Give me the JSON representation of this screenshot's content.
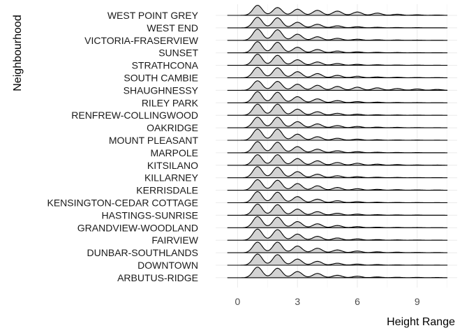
{
  "chart_data": {
    "type": "ridgeline",
    "xlabel": "Height Range",
    "ylabel": "Neighbourhood",
    "xlim": [
      -1.1,
      11.0
    ],
    "x_ticks": [
      0,
      3,
      6,
      9
    ],
    "grid": true,
    "fill_color": "#d3d3d3",
    "line_color": "#000000",
    "categories": [
      "ARBUTUS-RIDGE",
      "DOWNTOWN",
      "DUNBAR-SOUTHLANDS",
      "FAIRVIEW",
      "GRANDVIEW-WOODLAND",
      "HASTINGS-SUNRISE",
      "KENSINGTON-CEDAR COTTAGE",
      "KERRISDALE",
      "KILLARNEY",
      "KITSILANO",
      "MARPOLE",
      "MOUNT PLEASANT",
      "OAKRIDGE",
      "RENFREW-COLLINGWOOD",
      "RILEY PARK",
      "SHAUGHNESSY",
      "SOUTH CAMBIE",
      "STRATHCONA",
      "SUNSET",
      "VICTORIA-FRASERVIEW",
      "WEST END",
      "WEST POINT GREY"
    ],
    "density_range": [
      -0.5,
      10.5
    ],
    "density_peaks_x": [
      1,
      2,
      3,
      4,
      5,
      6,
      7,
      8,
      9,
      10
    ],
    "series": [
      {
        "name": "ARBUTUS-RIDGE",
        "peaks": [
          0.95,
          0.85,
          0.55,
          0.38,
          0.22,
          0.13,
          0.07,
          0.04,
          0.03,
          0.02
        ]
      },
      {
        "name": "DOWNTOWN",
        "peaks": [
          1.0,
          0.95,
          0.55,
          0.35,
          0.18,
          0.1,
          0.06,
          0.03,
          0.02,
          0.01
        ]
      },
      {
        "name": "DUNBAR-SOUTHLANDS",
        "peaks": [
          0.95,
          0.95,
          0.6,
          0.4,
          0.25,
          0.15,
          0.08,
          0.05,
          0.03,
          0.02
        ]
      },
      {
        "name": "FAIRVIEW",
        "peaks": [
          1.0,
          0.95,
          0.55,
          0.35,
          0.2,
          0.12,
          0.06,
          0.03,
          0.02,
          0.01
        ]
      },
      {
        "name": "GRANDVIEW-WOODLAND",
        "peaks": [
          1.0,
          0.95,
          0.55,
          0.35,
          0.2,
          0.1,
          0.05,
          0.03,
          0.02,
          0.01
        ]
      },
      {
        "name": "HASTINGS-SUNRISE",
        "peaks": [
          1.0,
          0.95,
          0.55,
          0.32,
          0.18,
          0.1,
          0.05,
          0.03,
          0.02,
          0.01
        ]
      },
      {
        "name": "KENSINGTON-CEDAR COTTAGE",
        "peaks": [
          1.0,
          0.95,
          0.55,
          0.32,
          0.18,
          0.1,
          0.05,
          0.03,
          0.02,
          0.01
        ]
      },
      {
        "name": "KERRISDALE",
        "peaks": [
          0.95,
          0.9,
          0.6,
          0.4,
          0.25,
          0.14,
          0.08,
          0.05,
          0.03,
          0.02
        ]
      },
      {
        "name": "KILLARNEY",
        "peaks": [
          1.0,
          0.95,
          0.55,
          0.32,
          0.18,
          0.1,
          0.05,
          0.03,
          0.02,
          0.01
        ]
      },
      {
        "name": "KITSILANO",
        "peaks": [
          0.95,
          0.95,
          0.6,
          0.4,
          0.25,
          0.18,
          0.1,
          0.06,
          0.03,
          0.02
        ]
      },
      {
        "name": "MARPOLE",
        "peaks": [
          1.0,
          0.95,
          0.55,
          0.32,
          0.18,
          0.1,
          0.05,
          0.03,
          0.02,
          0.01
        ]
      },
      {
        "name": "MOUNT PLEASANT",
        "peaks": [
          1.0,
          1.0,
          0.55,
          0.32,
          0.18,
          0.1,
          0.05,
          0.03,
          0.02,
          0.01
        ]
      },
      {
        "name": "OAKRIDGE",
        "peaks": [
          0.95,
          0.95,
          0.55,
          0.35,
          0.2,
          0.12,
          0.06,
          0.04,
          0.02,
          0.01
        ]
      },
      {
        "name": "RENFREW-COLLINGWOOD",
        "peaks": [
          1.0,
          1.0,
          0.55,
          0.32,
          0.18,
          0.1,
          0.05,
          0.03,
          0.02,
          0.01
        ]
      },
      {
        "name": "RILEY PARK",
        "peaks": [
          1.0,
          0.95,
          0.55,
          0.35,
          0.2,
          0.11,
          0.06,
          0.03,
          0.02,
          0.01
        ]
      },
      {
        "name": "SHAUGHNESSY",
        "peaks": [
          0.85,
          0.8,
          0.55,
          0.45,
          0.35,
          0.28,
          0.22,
          0.16,
          0.12,
          0.08
        ]
      },
      {
        "name": "SOUTH CAMBIE",
        "peaks": [
          0.95,
          0.9,
          0.55,
          0.38,
          0.22,
          0.14,
          0.08,
          0.05,
          0.03,
          0.02
        ]
      },
      {
        "name": "STRATHCONA",
        "peaks": [
          1.0,
          0.9,
          0.5,
          0.3,
          0.16,
          0.09,
          0.05,
          0.03,
          0.02,
          0.01
        ]
      },
      {
        "name": "SUNSET",
        "peaks": [
          1.0,
          0.95,
          0.5,
          0.3,
          0.16,
          0.09,
          0.05,
          0.03,
          0.02,
          0.01
        ]
      },
      {
        "name": "VICTORIA-FRASERVIEW",
        "peaks": [
          1.0,
          0.95,
          0.55,
          0.32,
          0.18,
          0.1,
          0.05,
          0.03,
          0.02,
          0.01
        ]
      },
      {
        "name": "WEST END",
        "peaks": [
          0.95,
          0.9,
          0.5,
          0.32,
          0.18,
          0.1,
          0.05,
          0.03,
          0.02,
          0.01
        ]
      },
      {
        "name": "WEST POINT GREY",
        "peaks": [
          0.9,
          0.7,
          0.55,
          0.45,
          0.38,
          0.3,
          0.2,
          0.1,
          0.05,
          0.03
        ]
      }
    ]
  }
}
